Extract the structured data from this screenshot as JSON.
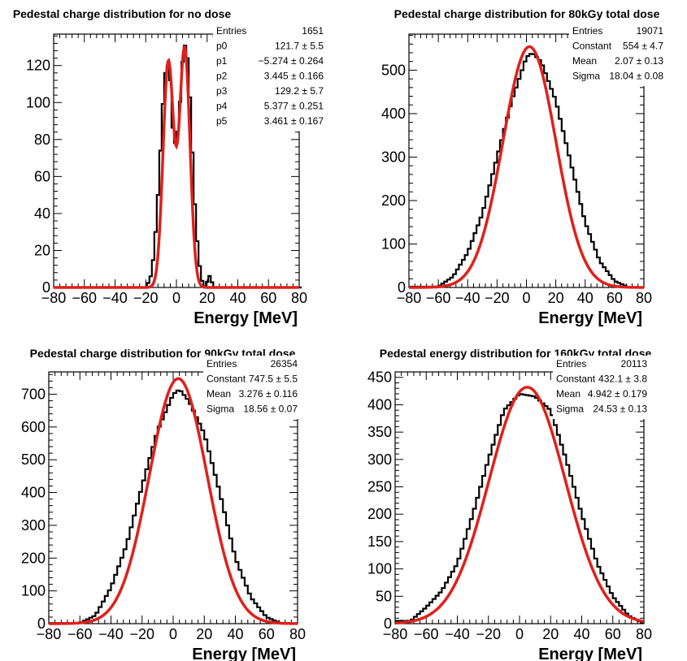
{
  "colors": {
    "histogram": "#000000",
    "fit": "#e0201b",
    "axis": "#000000"
  },
  "chart_data": [
    {
      "type": "histogram",
      "title": "Pedestal charge distribution for no dose",
      "xlabel": "Energy [MeV]",
      "ylabel": "",
      "xlim": [
        -80,
        80
      ],
      "ylim": [
        0,
        137
      ],
      "xticks": [
        -80,
        -60,
        -40,
        -20,
        0,
        20,
        40,
        60,
        80
      ],
      "yticks": [
        0,
        20,
        40,
        60,
        80,
        100,
        120
      ],
      "fit_model": "double-gaussian",
      "fit": {
        "A1": 121.7,
        "m1": -5.274,
        "s1": 3.445,
        "A2": 129.2,
        "m2": 5.377,
        "s2": 3.461
      },
      "histogram_points": [
        [
          -20,
          0
        ],
        [
          -18,
          3
        ],
        [
          -16,
          8
        ],
        [
          -14,
          25
        ],
        [
          -12,
          50
        ],
        [
          -10,
          80
        ],
        [
          -8,
          112
        ],
        [
          -6,
          122
        ],
        [
          -4,
          112
        ],
        [
          -2,
          80
        ],
        [
          0,
          77
        ],
        [
          2,
          95
        ],
        [
          4,
          122
        ],
        [
          6,
          133
        ],
        [
          8,
          118
        ],
        [
          10,
          80
        ],
        [
          12,
          45
        ],
        [
          14,
          20
        ],
        [
          16,
          6
        ],
        [
          18,
          0
        ],
        [
          20,
          3
        ],
        [
          22,
          7
        ],
        [
          24,
          0
        ]
      ],
      "stats": [
        {
          "label": "Entries",
          "value": "1651"
        },
        {
          "label": "p0",
          "value": "121.7 ± 5.5"
        },
        {
          "label": "p1",
          "value": "−5.274 ± 0.264"
        },
        {
          "label": "p2",
          "value": "3.445 ± 0.166"
        },
        {
          "label": "p3",
          "value": "129.2 ± 5.7"
        },
        {
          "label": "p4",
          "value": "5.377 ± 0.251"
        },
        {
          "label": "p5",
          "value": "3.461 ± 0.167"
        }
      ]
    },
    {
      "type": "histogram",
      "title": "Pedestal charge distribution for 80kGy total dose",
      "xlabel": "Energy [MeV]",
      "ylabel": "",
      "xlim": [
        -80,
        80
      ],
      "ylim": [
        0,
        583
      ],
      "xticks": [
        -80,
        -60,
        -40,
        -20,
        0,
        20,
        40,
        60,
        80
      ],
      "yticks": [
        0,
        100,
        200,
        300,
        400,
        500
      ],
      "fit_model": "gaussian",
      "fit": {
        "A": 554,
        "m": 2.07,
        "s": 18.04
      },
      "histogram_points": [
        [
          -60,
          2
        ],
        [
          -50,
          25
        ],
        [
          -40,
          80
        ],
        [
          -30,
          170
        ],
        [
          -20,
          300
        ],
        [
          -10,
          430
        ],
        [
          0,
          530
        ],
        [
          4,
          540
        ],
        [
          10,
          520
        ],
        [
          20,
          430
        ],
        [
          30,
          290
        ],
        [
          40,
          150
        ],
        [
          50,
          60
        ],
        [
          60,
          15
        ],
        [
          70,
          0
        ]
      ],
      "stats": [
        {
          "label": "Entries",
          "value": "19071"
        },
        {
          "label": "Constant",
          "value": "554 ± 4.7"
        },
        {
          "label": "Mean",
          "value": "2.07 ± 0.13"
        },
        {
          "label": "Sigma",
          "value": "18.04 ± 0.08"
        }
      ]
    },
    {
      "type": "histogram",
      "title": "Pedestal charge distribution for 90kGy total dose",
      "xlabel": "Energy [MeV]",
      "ylabel": "",
      "xlim": [
        -80,
        80
      ],
      "ylim": [
        0,
        768
      ],
      "xticks": [
        -80,
        -60,
        -40,
        -20,
        0,
        20,
        40,
        60,
        80
      ],
      "yticks": [
        0,
        100,
        200,
        300,
        400,
        500,
        600,
        700
      ],
      "fit_model": "gaussian",
      "fit": {
        "A": 747.5,
        "m": 3.276,
        "s": 18.56
      },
      "histogram_points": [
        [
          -60,
          2
        ],
        [
          -50,
          25
        ],
        [
          -40,
          110
        ],
        [
          -30,
          240
        ],
        [
          -20,
          420
        ],
        [
          -10,
          590
        ],
        [
          0,
          700
        ],
        [
          4,
          715
        ],
        [
          10,
          680
        ],
        [
          20,
          580
        ],
        [
          30,
          400
        ],
        [
          40,
          200
        ],
        [
          50,
          80
        ],
        [
          60,
          20
        ],
        [
          70,
          0
        ]
      ],
      "stats": [
        {
          "label": "Entries",
          "value": "26354"
        },
        {
          "label": "Constant",
          "value": "747.5 ± 5.5"
        },
        {
          "label": "Mean",
          "value": "3.276 ± 0.116"
        },
        {
          "label": "Sigma",
          "value": "18.56 ± 0.07"
        }
      ]
    },
    {
      "type": "histogram",
      "title": "Pedestal energy distribution for 160kGy total dose",
      "xlabel": "Energy [MeV]",
      "ylabel": "",
      "xlim": [
        -80,
        80
      ],
      "ylim": [
        0,
        460
      ],
      "xticks": [
        -80,
        -60,
        -40,
        -20,
        0,
        20,
        40,
        60,
        80
      ],
      "yticks": [
        0,
        50,
        100,
        150,
        200,
        250,
        300,
        350,
        400,
        450
      ],
      "fit_model": "gaussian",
      "fit": {
        "A": 432.1,
        "m": 4.942,
        "s": 24.53
      },
      "histogram_points": [
        [
          -70,
          5
        ],
        [
          -60,
          30
        ],
        [
          -50,
          60
        ],
        [
          -40,
          110
        ],
        [
          -30,
          200
        ],
        [
          -20,
          300
        ],
        [
          -10,
          390
        ],
        [
          0,
          420
        ],
        [
          10,
          415
        ],
        [
          20,
          390
        ],
        [
          30,
          300
        ],
        [
          40,
          200
        ],
        [
          50,
          110
        ],
        [
          60,
          50
        ],
        [
          70,
          15
        ],
        [
          80,
          0
        ]
      ],
      "stats": [
        {
          "label": "Entries",
          "value": "20113"
        },
        {
          "label": "Constant",
          "value": "432.1 ± 3.8"
        },
        {
          "label": "Mean",
          "value": "4.942 ± 0.179"
        },
        {
          "label": "Sigma",
          "value": "24.53 ± 0.13"
        }
      ]
    }
  ]
}
